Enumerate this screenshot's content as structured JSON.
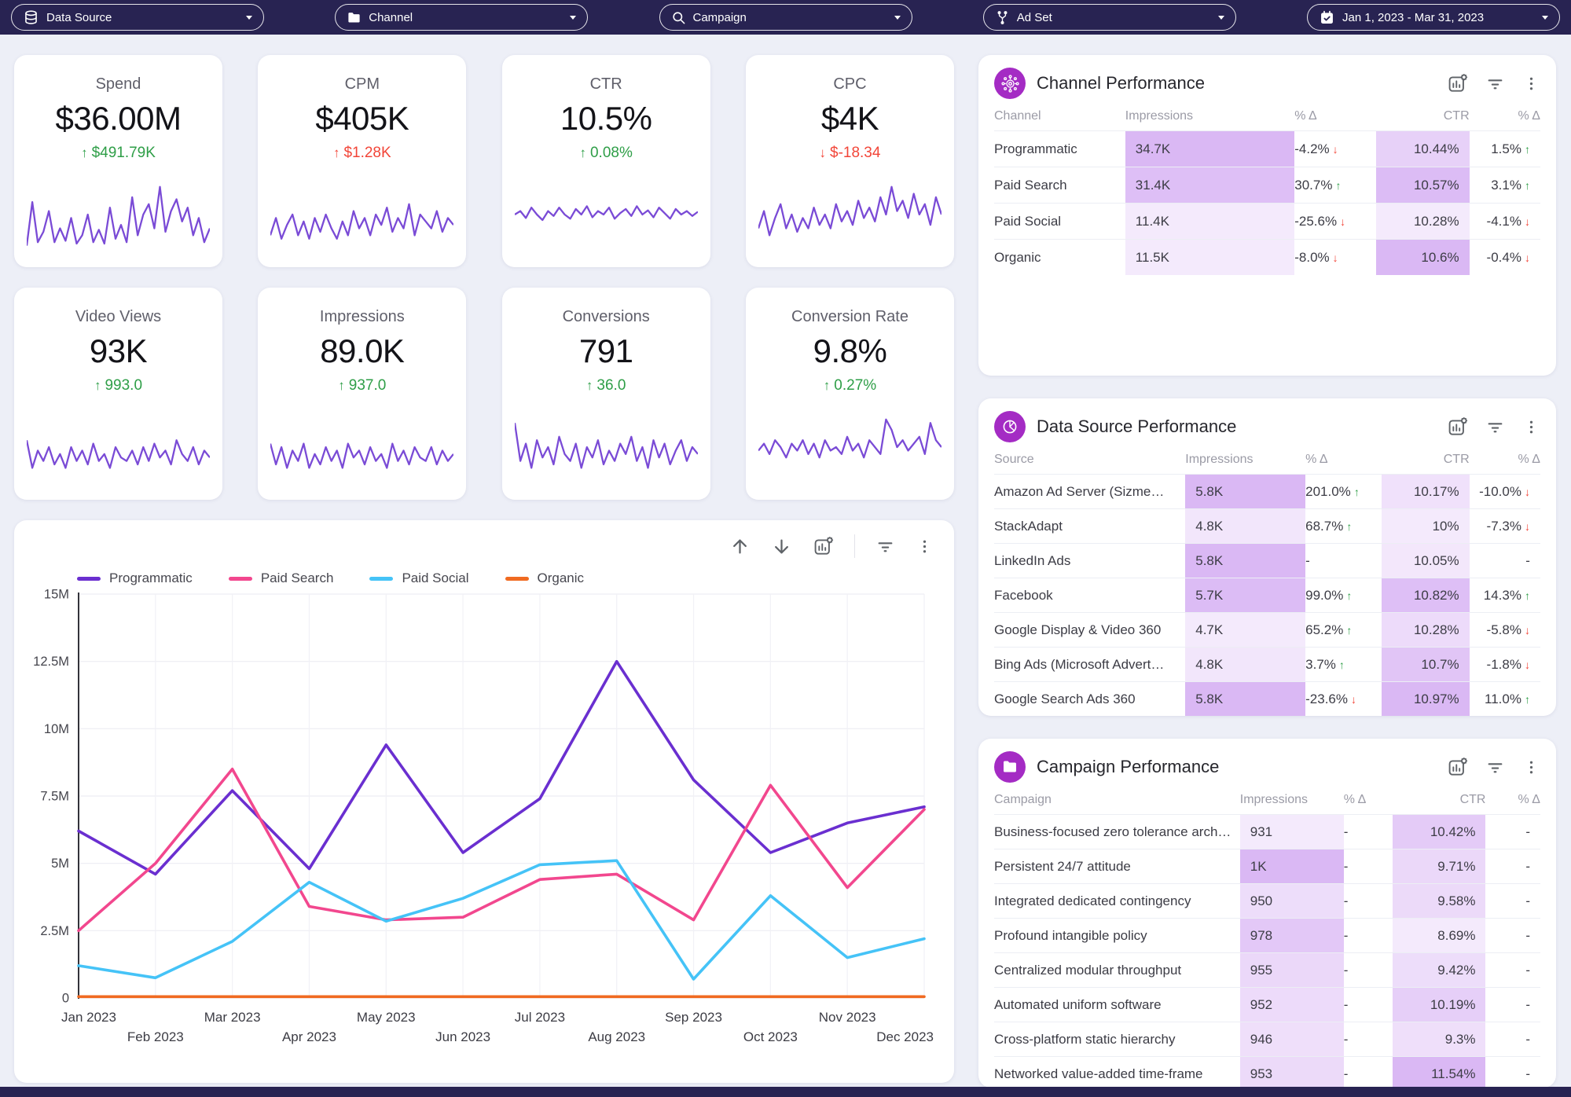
{
  "topbar": {
    "filters": [
      {
        "id": "data-source",
        "label": "Data Source",
        "icon": "database"
      },
      {
        "id": "channel",
        "label": "Channel",
        "icon": "folder"
      },
      {
        "id": "campaign",
        "label": "Campaign",
        "icon": "search"
      },
      {
        "id": "ad-set",
        "label": "Ad Set",
        "icon": "branch"
      },
      {
        "id": "date-range",
        "label": "Jan 1, 2023 - Mar 31, 2023",
        "icon": "calendar"
      }
    ]
  },
  "colors": {
    "topbar_bg": "#282352",
    "accent_purple": "#a42bc4",
    "spark": "#7a4bd6",
    "good": "#2e9e47",
    "bad": "#f24538",
    "heat_base": "178,106,233"
  },
  "kpis": [
    {
      "title": "Spend",
      "value": "$36.00M",
      "delta": "$491.79K",
      "arrow": "up",
      "tone": "green",
      "spark": [
        0.05,
        0.68,
        0.1,
        0.25,
        0.55,
        0.1,
        0.3,
        0.12,
        0.45,
        0.08,
        0.2,
        0.5,
        0.1,
        0.28,
        0.08,
        0.6,
        0.15,
        0.35,
        0.1,
        0.75,
        0.2,
        0.5,
        0.65,
        0.3,
        0.9,
        0.25,
        0.55,
        0.72,
        0.4,
        0.6,
        0.2,
        0.45,
        0.1,
        0.3
      ]
    },
    {
      "title": "CPM",
      "value": "$405K",
      "delta": "$1.28K",
      "arrow": "up",
      "tone": "red",
      "spark": [
        0.2,
        0.45,
        0.15,
        0.35,
        0.5,
        0.2,
        0.4,
        0.15,
        0.45,
        0.25,
        0.5,
        0.3,
        0.15,
        0.4,
        0.2,
        0.55,
        0.3,
        0.45,
        0.2,
        0.5,
        0.35,
        0.6,
        0.25,
        0.45,
        0.3,
        0.65,
        0.2,
        0.5,
        0.4,
        0.3,
        0.55,
        0.25,
        0.45,
        0.35
      ]
    },
    {
      "title": "CTR",
      "value": "10.5%",
      "delta": "0.08%",
      "arrow": "up",
      "tone": "green",
      "spark": [
        0.5,
        0.55,
        0.45,
        0.6,
        0.5,
        0.42,
        0.55,
        0.48,
        0.6,
        0.5,
        0.44,
        0.58,
        0.5,
        0.62,
        0.46,
        0.55,
        0.5,
        0.6,
        0.44,
        0.52,
        0.58,
        0.48,
        0.62,
        0.5,
        0.56,
        0.46,
        0.6,
        0.52,
        0.44,
        0.58,
        0.5,
        0.55,
        0.48,
        0.54
      ]
    },
    {
      "title": "CPC",
      "value": "$4K",
      "delta": "$-18.34",
      "arrow": "down",
      "tone": "red",
      "spark": [
        0.3,
        0.55,
        0.2,
        0.45,
        0.65,
        0.3,
        0.5,
        0.25,
        0.45,
        0.3,
        0.6,
        0.35,
        0.5,
        0.3,
        0.65,
        0.4,
        0.55,
        0.35,
        0.7,
        0.45,
        0.6,
        0.4,
        0.75,
        0.5,
        0.9,
        0.55,
        0.7,
        0.45,
        0.8,
        0.5,
        0.65,
        0.35,
        0.75,
        0.5
      ]
    },
    {
      "title": "Video Views",
      "value": "93K",
      "delta": "993.0",
      "arrow": "up",
      "tone": "green",
      "spark": [
        0.6,
        0.2,
        0.45,
        0.3,
        0.5,
        0.25,
        0.4,
        0.2,
        0.5,
        0.3,
        0.45,
        0.25,
        0.55,
        0.3,
        0.4,
        0.2,
        0.5,
        0.35,
        0.3,
        0.45,
        0.25,
        0.5,
        0.3,
        0.55,
        0.35,
        0.45,
        0.25,
        0.6,
        0.4,
        0.3,
        0.5,
        0.25,
        0.45,
        0.35
      ]
    },
    {
      "title": "Impressions",
      "value": "89.0K",
      "delta": "937.0",
      "arrow": "up",
      "tone": "green",
      "spark": [
        0.55,
        0.25,
        0.5,
        0.2,
        0.45,
        0.3,
        0.55,
        0.2,
        0.4,
        0.25,
        0.5,
        0.3,
        0.45,
        0.2,
        0.55,
        0.35,
        0.45,
        0.25,
        0.5,
        0.3,
        0.4,
        0.2,
        0.55,
        0.3,
        0.45,
        0.25,
        0.5,
        0.35,
        0.3,
        0.5,
        0.25,
        0.45,
        0.3,
        0.4
      ]
    },
    {
      "title": "Conversions",
      "value": "791",
      "delta": "36.0",
      "arrow": "up",
      "tone": "green",
      "spark": [
        0.85,
        0.3,
        0.55,
        0.2,
        0.6,
        0.35,
        0.5,
        0.25,
        0.65,
        0.4,
        0.3,
        0.55,
        0.2,
        0.5,
        0.35,
        0.6,
        0.25,
        0.45,
        0.3,
        0.55,
        0.4,
        0.65,
        0.3,
        0.5,
        0.2,
        0.6,
        0.35,
        0.55,
        0.25,
        0.45,
        0.6,
        0.3,
        0.5,
        0.4
      ]
    },
    {
      "title": "Conversion Rate",
      "value": "9.8%",
      "delta": "0.27%",
      "arrow": "up",
      "tone": "green",
      "spark": [
        0.45,
        0.55,
        0.4,
        0.6,
        0.5,
        0.35,
        0.55,
        0.45,
        0.6,
        0.4,
        0.55,
        0.35,
        0.6,
        0.45,
        0.5,
        0.4,
        0.65,
        0.45,
        0.55,
        0.35,
        0.6,
        0.5,
        0.4,
        0.9,
        0.75,
        0.5,
        0.6,
        0.45,
        0.55,
        0.65,
        0.4,
        0.85,
        0.6,
        0.5
      ]
    }
  ],
  "chart_data": {
    "type": "line",
    "title": "",
    "xlabel": "",
    "ylabel": "",
    "x": [
      "Jan 2023",
      "Feb 2023",
      "Mar 2023",
      "Apr 2023",
      "May 2023",
      "Jun 2023",
      "Jul 2023",
      "Aug 2023",
      "Sep 2023",
      "Oct 2023",
      "Nov 2023",
      "Dec 2023"
    ],
    "unit": "M",
    "ylim": [
      0,
      15
    ],
    "yticks": [
      0,
      2.5,
      5,
      7.5,
      10,
      12.5,
      15
    ],
    "ytick_labels": [
      "0",
      "2.5M",
      "5M",
      "7.5M",
      "10M",
      "12.5M",
      "15M"
    ],
    "grid": true,
    "legend_position": "top",
    "series": [
      {
        "name": "Programmatic",
        "color": "#6a2fd0",
        "values": [
          6.2,
          4.6,
          7.7,
          4.8,
          9.4,
          5.4,
          7.4,
          12.5,
          8.1,
          5.4,
          6.5,
          7.1
        ]
      },
      {
        "name": "Paid Search",
        "color": "#f2478e",
        "values": [
          2.5,
          5.0,
          8.5,
          3.4,
          2.9,
          3.0,
          4.4,
          4.6,
          2.9,
          7.9,
          4.1,
          7.0
        ]
      },
      {
        "name": "Paid Social",
        "color": "#45c3f7",
        "values": [
          1.2,
          0.75,
          2.1,
          4.3,
          2.85,
          3.7,
          4.95,
          5.1,
          0.7,
          3.8,
          1.5,
          2.2
        ]
      },
      {
        "name": "Organic",
        "color": "#f06a21",
        "values": [
          0.05,
          0.05,
          0.05,
          0.05,
          0.05,
          0.05,
          0.05,
          0.05,
          0.05,
          0.05,
          0.05,
          0.05
        ]
      }
    ]
  },
  "tables": [
    {
      "id": "channel-performance",
      "title": "Channel Performance",
      "icon": "network",
      "columns": [
        {
          "label": "Channel",
          "align": "left",
          "hl": false
        },
        {
          "label": "Impressions",
          "align": "left",
          "hl": true
        },
        {
          "label": "% Δ",
          "align": "left",
          "hl": false
        },
        {
          "label": "CTR",
          "align": "right",
          "hl": true
        },
        {
          "label": "% Δ",
          "align": "right",
          "hl": false
        }
      ],
      "rows": [
        [
          "Programmatic",
          "34.7K",
          {
            "t": "-4.2%",
            "arrow": "down",
            "tone": "red"
          },
          "10.44%",
          {
            "t": "1.5%",
            "arrow": "up",
            "tone": "green"
          }
        ],
        [
          "Paid Search",
          "31.4K",
          {
            "t": "30.7%",
            "arrow": "up",
            "tone": "green"
          },
          "10.57%",
          {
            "t": "3.1%",
            "arrow": "up",
            "tone": "green"
          }
        ],
        [
          "Paid Social",
          "11.4K",
          {
            "t": "-25.6%",
            "arrow": "down",
            "tone": "red"
          },
          "10.28%",
          {
            "t": "-4.1%",
            "arrow": "down",
            "tone": "red"
          }
        ],
        [
          "Organic",
          "11.5K",
          {
            "t": "-8.0%",
            "arrow": "down",
            "tone": "red"
          },
          "10.6%",
          {
            "t": "-0.4%",
            "arrow": "down",
            "tone": "red"
          }
        ]
      ]
    },
    {
      "id": "data-source-performance",
      "title": "Data Source Performance",
      "icon": "pie",
      "columns": [
        {
          "label": "Source",
          "align": "left",
          "hl": false
        },
        {
          "label": "Impressions",
          "align": "left",
          "hl": true
        },
        {
          "label": "% Δ",
          "align": "left",
          "hl": false
        },
        {
          "label": "CTR",
          "align": "right",
          "hl": true
        },
        {
          "label": "% Δ",
          "align": "right",
          "hl": false
        }
      ],
      "rows": [
        [
          "Amazon Ad Server (Sizme…",
          "5.8K",
          {
            "t": "201.0%",
            "arrow": "up",
            "tone": "green"
          },
          "10.17%",
          {
            "t": "-10.0%",
            "arrow": "down",
            "tone": "red"
          }
        ],
        [
          "StackAdapt",
          "4.8K",
          {
            "t": "68.7%",
            "arrow": "up",
            "tone": "green"
          },
          "10%",
          {
            "t": "-7.3%",
            "arrow": "down",
            "tone": "red"
          }
        ],
        [
          "LinkedIn Ads",
          "5.8K",
          "-",
          "10.05%",
          "-"
        ],
        [
          "Facebook",
          "5.7K",
          {
            "t": "99.0%",
            "arrow": "up",
            "tone": "green"
          },
          "10.82%",
          {
            "t": "14.3%",
            "arrow": "up",
            "tone": "green"
          }
        ],
        [
          "Google Display & Video 360",
          "4.7K",
          {
            "t": "65.2%",
            "arrow": "up",
            "tone": "green"
          },
          "10.28%",
          {
            "t": "-5.8%",
            "arrow": "down",
            "tone": "red"
          }
        ],
        [
          "Bing Ads (Microsoft Advert…",
          "4.8K",
          {
            "t": "3.7%",
            "arrow": "up",
            "tone": "green"
          },
          "10.7%",
          {
            "t": "-1.8%",
            "arrow": "down",
            "tone": "red"
          }
        ],
        [
          "Google Search Ads 360",
          "5.8K",
          {
            "t": "-23.6%",
            "arrow": "down",
            "tone": "red"
          },
          "10.97%",
          {
            "t": "11.0%",
            "arrow": "up",
            "tone": "green"
          }
        ]
      ]
    },
    {
      "id": "campaign-performance",
      "title": "Campaign Performance",
      "icon": "folder-purple",
      "columns": [
        {
          "label": "Campaign",
          "align": "left",
          "hl": false
        },
        {
          "label": "Impressions",
          "align": "left",
          "hl": true
        },
        {
          "label": "% Δ",
          "align": "left",
          "hl": false
        },
        {
          "label": "CTR",
          "align": "right",
          "hl": true
        },
        {
          "label": "% Δ",
          "align": "right",
          "hl": false
        }
      ],
      "rows": [
        [
          "Business-focused zero tolerance arch…",
          "931",
          "-",
          "10.42%",
          "-"
        ],
        [
          "Persistent 24/7 attitude",
          "1K",
          "-",
          "9.71%",
          "-"
        ],
        [
          "Integrated dedicated contingency",
          "950",
          "-",
          "9.58%",
          "-"
        ],
        [
          "Profound intangible policy",
          "978",
          "-",
          "8.69%",
          "-"
        ],
        [
          "Centralized modular throughput",
          "955",
          "-",
          "9.42%",
          "-"
        ],
        [
          "Automated uniform software",
          "952",
          "-",
          "10.19%",
          "-"
        ],
        [
          "Cross-platform static hierarchy",
          "946",
          "-",
          "9.3%",
          "-"
        ],
        [
          "Networked value-added time-frame",
          "953",
          "-",
          "11.54%",
          "-"
        ]
      ]
    }
  ]
}
